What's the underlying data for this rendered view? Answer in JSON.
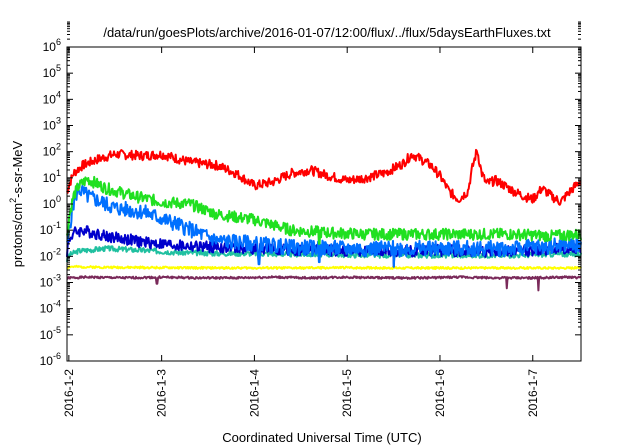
{
  "chart_data": {
    "type": "line",
    "title": "/data/run/goesPlots/archive/2016-01-07/12:00/flux/../flux/5daysEarthFluxes.txt",
    "xlabel": "Coordinated Universal Time (UTC)",
    "ylabel": {
      "prefix": "protons/cm",
      "superscript": "2",
      "suffix": "-s-sr-MeV"
    },
    "yscale": "log",
    "ylim_exponents": [
      -6,
      6
    ],
    "yticks": [
      {
        "base": "10",
        "exp": "6"
      },
      {
        "base": "10",
        "exp": "5"
      },
      {
        "base": "10",
        "exp": "4"
      },
      {
        "base": "10",
        "exp": "3"
      },
      {
        "base": "10",
        "exp": "2"
      },
      {
        "base": "10",
        "exp": "1"
      },
      {
        "base": "10",
        "exp": "0"
      },
      {
        "base": "10",
        "exp": "-1"
      },
      {
        "base": "10",
        "exp": "-2"
      },
      {
        "base": "10",
        "exp": "-3"
      },
      {
        "base": "10",
        "exp": "-4"
      },
      {
        "base": "10",
        "exp": "-5"
      },
      {
        "base": "10",
        "exp": "-6"
      }
    ],
    "xlim_days": [
      1.98,
      7.52
    ],
    "xticks": [
      {
        "day": 2,
        "label": "2016-1-2"
      },
      {
        "day": 3,
        "label": "2016-1-3"
      },
      {
        "day": 4,
        "label": "2016-1-4"
      },
      {
        "day": 5,
        "label": "2016-1-5"
      },
      {
        "day": 6,
        "label": "2016-1-6"
      },
      {
        "day": 7,
        "label": "2016-1-7"
      }
    ],
    "grid": false,
    "series": [
      {
        "color": "#7a2a5a",
        "x": [
          1.98,
          2.0,
          2.2,
          2.6,
          3.0,
          3.4,
          3.8,
          4.2,
          4.6,
          5.0,
          5.4,
          5.8,
          6.2,
          6.6,
          7.0,
          7.4,
          7.52
        ],
        "y": [
          0.0014,
          0.0015,
          0.0016,
          0.0015,
          0.0016,
          0.0015,
          0.0015,
          0.0016,
          0.0015,
          0.0016,
          0.0015,
          0.0015,
          0.0016,
          0.0015,
          0.0015,
          0.0016,
          0.0015
        ],
        "noise": 0.04,
        "seed": 1,
        "dips": [
          [
            2.95,
            0.0009
          ],
          [
            6.72,
            0.0006
          ],
          [
            7.06,
            0.0005
          ]
        ]
      },
      {
        "color": "#ffff00",
        "x": [
          1.98,
          2.0,
          2.5,
          3.0,
          3.5,
          4.0,
          4.5,
          5.0,
          5.5,
          6.0,
          6.5,
          7.0,
          7.52
        ],
        "y": [
          0.0035,
          0.004,
          0.0038,
          0.0037,
          0.0036,
          0.0036,
          0.0036,
          0.0037,
          0.0036,
          0.0036,
          0.0036,
          0.0036,
          0.0036
        ],
        "noise": 0.04,
        "seed": 2,
        "dips": []
      },
      {
        "color": "#20c0a0",
        "x": [
          1.98,
          2.0,
          2.1,
          2.4,
          2.8,
          3.2,
          3.6,
          4.0,
          4.4,
          4.8,
          5.2,
          5.6,
          6.0,
          6.4,
          6.8,
          7.2,
          7.52
        ],
        "y": [
          0.007,
          0.011,
          0.016,
          0.02,
          0.017,
          0.014,
          0.013,
          0.013,
          0.012,
          0.012,
          0.011,
          0.011,
          0.011,
          0.011,
          0.011,
          0.012,
          0.012
        ],
        "noise": 0.1,
        "seed": 3,
        "dips": []
      },
      {
        "color": "#0000cc",
        "x": [
          1.98,
          2.0,
          2.05,
          2.15,
          2.4,
          2.8,
          3.2,
          3.6,
          4.0,
          4.4,
          4.8,
          5.2,
          5.6,
          6.0,
          6.4,
          6.8,
          7.2,
          7.52
        ],
        "y": [
          0.015,
          0.04,
          0.08,
          0.1,
          0.06,
          0.035,
          0.025,
          0.022,
          0.02,
          0.018,
          0.017,
          0.016,
          0.016,
          0.017,
          0.016,
          0.015,
          0.02,
          0.02
        ],
        "noise": 0.22,
        "seed": 4,
        "dips": [
          [
            4.05,
            0.006
          ],
          [
            5.5,
            0.004
          ]
        ]
      },
      {
        "color": "#0070ff",
        "x": [
          1.98,
          2.0,
          2.05,
          2.1,
          2.2,
          2.5,
          2.8,
          3.2,
          3.6,
          4.0,
          4.4,
          4.8,
          5.2,
          5.6,
          6.0,
          6.4,
          6.8,
          7.2,
          7.52
        ],
        "y": [
          0.02,
          0.1,
          1.0,
          4.0,
          2.0,
          0.7,
          0.5,
          0.15,
          0.04,
          0.03,
          0.022,
          0.02,
          0.02,
          0.02,
          0.02,
          0.02,
          0.02,
          0.025,
          0.03
        ],
        "noise": 0.3,
        "seed": 5,
        "dips": [
          [
            4.05,
            0.005
          ],
          [
            4.7,
            0.006
          ],
          [
            5.5,
            0.004
          ]
        ]
      },
      {
        "color": "#20e020",
        "x": [
          1.98,
          2.0,
          2.05,
          2.1,
          2.2,
          2.4,
          2.7,
          3.0,
          3.3,
          3.6,
          4.0,
          4.4,
          4.8,
          5.2,
          5.6,
          6.0,
          6.4,
          6.8,
          7.2,
          7.52
        ],
        "y": [
          0.05,
          0.3,
          2.0,
          4.5,
          9.0,
          4.0,
          2.0,
          1.2,
          1.0,
          0.4,
          0.25,
          0.1,
          0.08,
          0.07,
          0.07,
          0.07,
          0.07,
          0.07,
          0.06,
          0.07
        ],
        "noise": 0.22,
        "seed": 6,
        "dips": [
          [
            4.7,
            0.03
          ]
        ]
      },
      {
        "color": "#ff0000",
        "x": [
          1.98,
          2.0,
          2.05,
          2.15,
          2.3,
          2.5,
          2.8,
          3.0,
          3.3,
          3.6,
          3.8,
          4.0,
          4.2,
          4.4,
          4.6,
          4.8,
          5.0,
          5.2,
          5.4,
          5.6,
          5.7,
          5.8,
          5.9,
          6.0,
          6.1,
          6.2,
          6.3,
          6.35,
          6.4,
          6.45,
          6.5,
          6.6,
          6.7,
          6.8,
          6.9,
          7.0,
          7.1,
          7.2,
          7.3,
          7.4,
          7.52
        ],
        "y": [
          3.0,
          5.0,
          15.0,
          30.0,
          50.0,
          80.0,
          70.0,
          80.0,
          40.0,
          30.0,
          15.0,
          5.0,
          7.0,
          15.0,
          20.0,
          12.0,
          8.0,
          10.0,
          15.0,
          35.0,
          80.0,
          50.0,
          30.0,
          12.0,
          3.0,
          1.5,
          3.0,
          25.0,
          120.0,
          15.0,
          6.0,
          8.0,
          5.0,
          3.0,
          2.0,
          1.5,
          4.0,
          2.0,
          1.2,
          3.0,
          8.0
        ],
        "noise": 0.18,
        "seed": 7,
        "dips": []
      }
    ]
  }
}
